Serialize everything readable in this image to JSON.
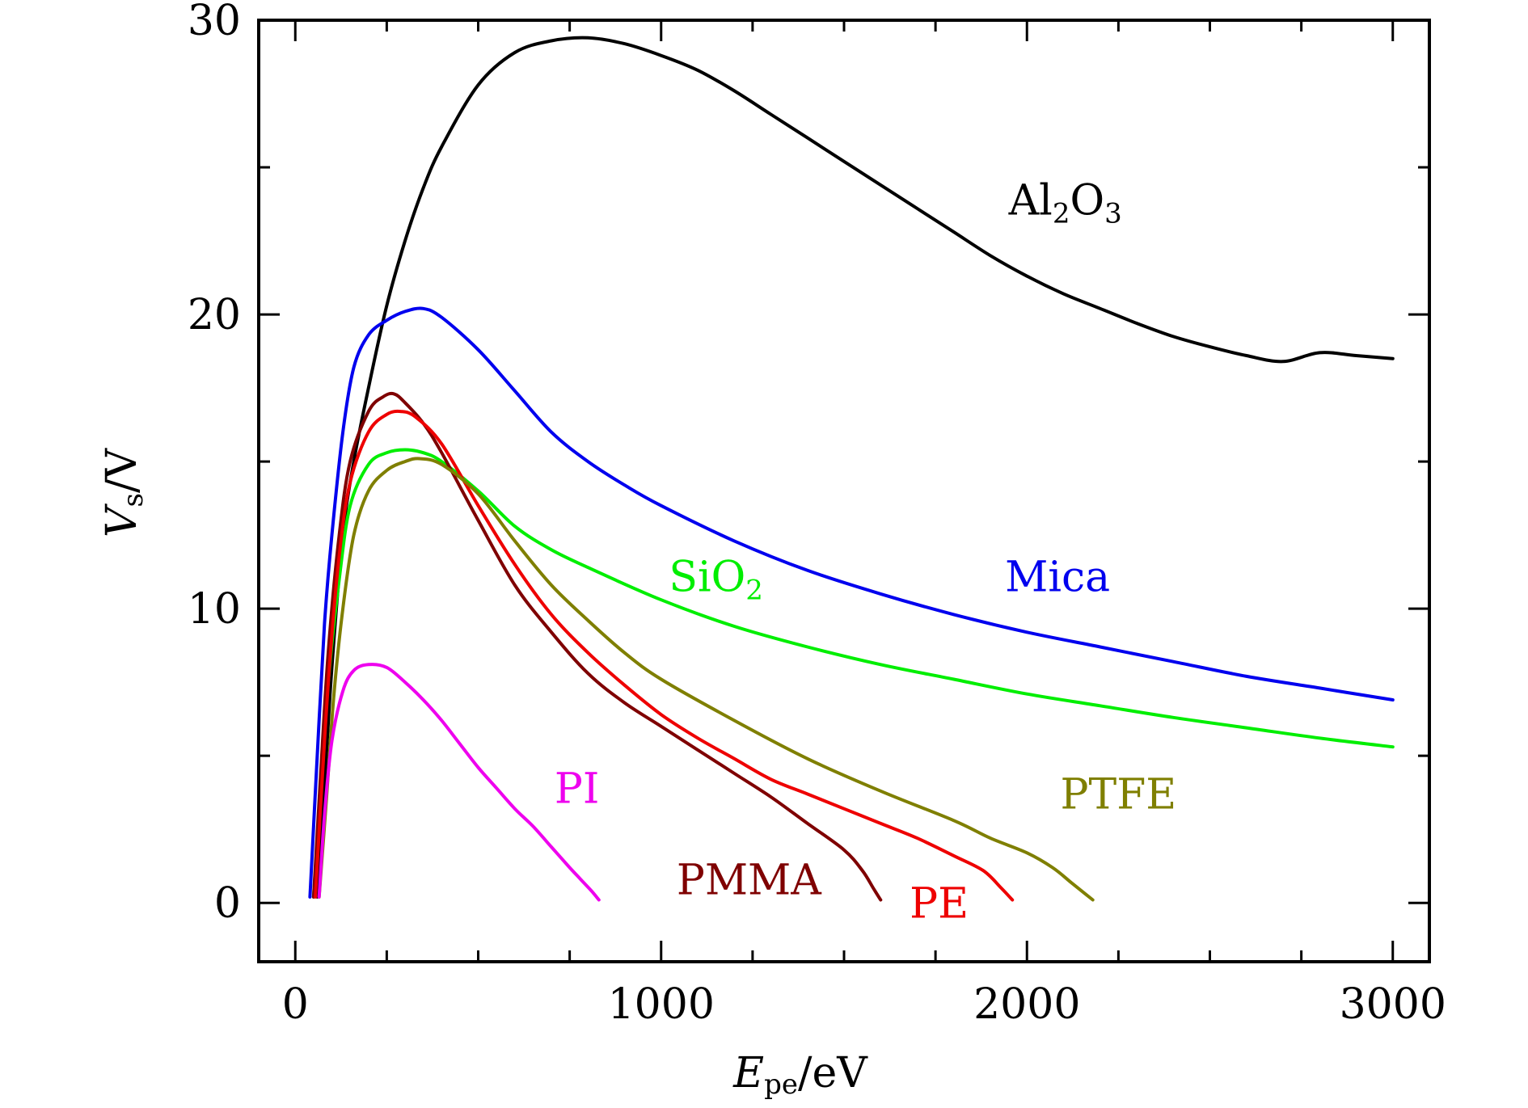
{
  "chart_data": {
    "type": "line",
    "title": "",
    "xlabel": {
      "symbol": "E",
      "subscript": "pe",
      "unit": "/eV"
    },
    "ylabel": {
      "symbol": "V",
      "subscript": "s",
      "unit": "/V"
    },
    "xlim": [
      -100,
      3100
    ],
    "ylim": [
      -2,
      30
    ],
    "xticks": [
      0,
      1000,
      2000,
      3000
    ],
    "yticks": [
      0,
      10,
      20,
      30
    ],
    "grid": false,
    "series": [
      {
        "name": "Al2O3",
        "label_main": "Al",
        "label_sub1": "2",
        "label_mid": "O",
        "label_sub2": "3",
        "color": "#000000",
        "x": [
          60,
          80,
          100,
          130,
          160,
          200,
          250,
          300,
          350,
          400,
          500,
          600,
          700,
          800,
          900,
          1000,
          1100,
          1200,
          1300,
          1400,
          1500,
          1600,
          1700,
          1800,
          1900,
          2000,
          2100,
          2200,
          2300,
          2400,
          2500,
          2600,
          2700,
          2800,
          2900,
          3000
        ],
        "y": [
          0.2,
          4.0,
          8.0,
          12.5,
          15.0,
          17.5,
          20.3,
          22.5,
          24.3,
          25.7,
          27.8,
          28.9,
          29.3,
          29.4,
          29.2,
          28.8,
          28.3,
          27.6,
          26.8,
          26.0,
          25.2,
          24.4,
          23.6,
          22.8,
          22.0,
          21.3,
          20.7,
          20.2,
          19.7,
          19.25,
          18.9,
          18.6,
          18.4,
          18.7,
          18.6,
          18.5
        ]
      },
      {
        "name": "Mica",
        "label_main": "Mica",
        "color": "#0000ee",
        "x": [
          40,
          60,
          80,
          100,
          130,
          160,
          200,
          250,
          300,
          350,
          400,
          500,
          600,
          700,
          800,
          900,
          1000,
          1200,
          1400,
          1600,
          1800,
          2000,
          2200,
          2400,
          2600,
          2800,
          3000
        ],
        "y": [
          0.2,
          5.0,
          9.5,
          12.5,
          16.0,
          18.2,
          19.3,
          19.8,
          20.1,
          20.2,
          19.9,
          18.8,
          17.4,
          16.0,
          15.0,
          14.2,
          13.5,
          12.3,
          11.3,
          10.5,
          9.8,
          9.2,
          8.7,
          8.2,
          7.7,
          7.3,
          6.9
        ]
      },
      {
        "name": "SiO2",
        "label_main": "SiO",
        "label_sub1": "2",
        "color": "#00ee00",
        "x": [
          50,
          70,
          90,
          120,
          150,
          200,
          250,
          300,
          350,
          400,
          500,
          600,
          700,
          800,
          1000,
          1200,
          1400,
          1600,
          1800,
          2000,
          2200,
          2400,
          2600,
          2800,
          3000
        ],
        "y": [
          0.2,
          4.0,
          7.5,
          11.0,
          13.5,
          14.9,
          15.3,
          15.4,
          15.3,
          15.0,
          14.0,
          12.8,
          12.0,
          11.4,
          10.3,
          9.4,
          8.7,
          8.1,
          7.6,
          7.1,
          6.7,
          6.3,
          5.95,
          5.6,
          5.3
        ]
      },
      {
        "name": "PMMA",
        "label_main": "PMMA",
        "color": "#7f0000",
        "x": [
          50,
          70,
          90,
          120,
          150,
          200,
          240,
          270,
          300,
          350,
          400,
          500,
          600,
          700,
          800,
          900,
          1000,
          1100,
          1200,
          1300,
          1400,
          1500,
          1550,
          1580,
          1600
        ],
        "y": [
          0.2,
          4.5,
          8.5,
          12.5,
          15.0,
          16.7,
          17.2,
          17.3,
          17.0,
          16.3,
          15.3,
          13.0,
          10.8,
          9.2,
          7.8,
          6.8,
          6.0,
          5.2,
          4.4,
          3.6,
          2.7,
          1.8,
          1.1,
          0.5,
          0.1
        ]
      },
      {
        "name": "PE",
        "label_main": "PE",
        "color": "#ee0000",
        "x": [
          55,
          75,
          95,
          120,
          150,
          200,
          250,
          290,
          330,
          400,
          500,
          600,
          700,
          800,
          900,
          1000,
          1100,
          1200,
          1300,
          1400,
          1500,
          1600,
          1700,
          1800,
          1880,
          1930,
          1960
        ],
        "y": [
          0.2,
          4.5,
          8.3,
          11.8,
          14.3,
          16.0,
          16.6,
          16.7,
          16.5,
          15.6,
          13.5,
          11.5,
          9.8,
          8.5,
          7.4,
          6.4,
          5.6,
          4.9,
          4.2,
          3.7,
          3.2,
          2.7,
          2.2,
          1.6,
          1.1,
          0.5,
          0.1
        ]
      },
      {
        "name": "PTFE",
        "label_main": "PTFE",
        "color": "#7f7f00",
        "x": [
          65,
          85,
          105,
          130,
          160,
          200,
          250,
          300,
          340,
          400,
          500,
          600,
          700,
          800,
          900,
          1000,
          1200,
          1400,
          1600,
          1800,
          1900,
          2000,
          2070,
          2120,
          2160,
          2180
        ],
        "y": [
          0.2,
          3.5,
          7.0,
          10.0,
          12.5,
          14.0,
          14.7,
          15.0,
          15.1,
          14.9,
          13.9,
          12.3,
          10.8,
          9.6,
          8.5,
          7.6,
          6.2,
          4.9,
          3.8,
          2.8,
          2.2,
          1.7,
          1.2,
          0.7,
          0.3,
          0.1
        ]
      },
      {
        "name": "PI",
        "label_main": "PI",
        "color": "#ee00ee",
        "x": [
          65,
          80,
          100,
          130,
          160,
          200,
          250,
          300,
          350,
          400,
          450,
          500,
          550,
          600,
          650,
          700,
          750,
          780,
          810,
          830
        ],
        "y": [
          0.2,
          3.0,
          5.5,
          7.2,
          7.9,
          8.1,
          8.0,
          7.5,
          6.9,
          6.2,
          5.4,
          4.6,
          3.9,
          3.2,
          2.6,
          1.9,
          1.2,
          0.8,
          0.4,
          0.1
        ]
      }
    ],
    "annotations": [
      {
        "series": "Al2O3",
        "x": 1950,
        "y": 23.4,
        "anchor": "start"
      },
      {
        "series": "Mica",
        "x": 1940,
        "y": 10.6,
        "anchor": "start"
      },
      {
        "series": "SiO2",
        "x": 1150,
        "y": 10.6,
        "anchor": "middle"
      },
      {
        "series": "PTFE",
        "x": 2250,
        "y": 3.2,
        "anchor": "middle"
      },
      {
        "series": "PI",
        "x": 770,
        "y": 3.4,
        "anchor": "middle"
      },
      {
        "series": "PMMA",
        "x": 1240,
        "y": 0.3,
        "anchor": "middle"
      },
      {
        "series": "PE",
        "x": 1760,
        "y": -0.5,
        "anchor": "middle"
      }
    ]
  }
}
